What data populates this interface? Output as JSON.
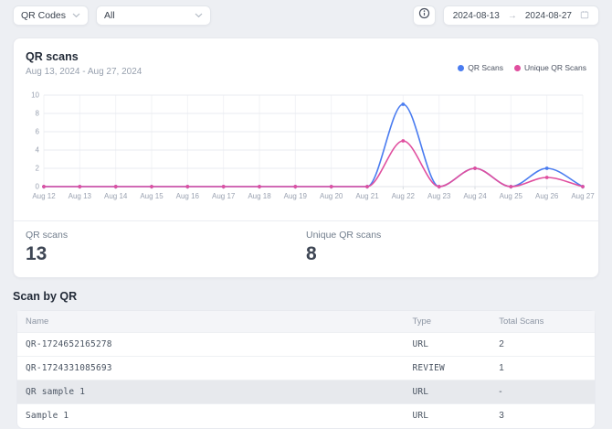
{
  "topbar": {
    "qr_codes_dropdown": "QR Codes",
    "filter_dropdown": "All",
    "date_start": "2024-08-13",
    "date_end": "2024-08-27",
    "range_arrow": "→"
  },
  "scans_card": {
    "title": "QR scans",
    "subtitle": "Aug 13, 2024 - Aug 27, 2024",
    "legend": [
      {
        "label": "QR Scans",
        "color": "#4a7cf0"
      },
      {
        "label": "Unique QR Scans",
        "color": "#e04f9f"
      }
    ],
    "stats": [
      {
        "label": "QR scans",
        "value": "13"
      },
      {
        "label": "Unique QR scans",
        "value": "8"
      }
    ]
  },
  "chart_data": {
    "type": "line",
    "title": "QR scans",
    "x": [
      "Aug 12",
      "Aug 13",
      "Aug 14",
      "Aug 15",
      "Aug 16",
      "Aug 17",
      "Aug 18",
      "Aug 19",
      "Aug 20",
      "Aug 21",
      "Aug 22",
      "Aug 23",
      "Aug 24",
      "Aug 25",
      "Aug 26",
      "Aug 27"
    ],
    "series": [
      {
        "name": "QR Scans",
        "color": "#4a7cf0",
        "values": [
          0,
          0,
          0,
          0,
          0,
          0,
          0,
          0,
          0,
          0,
          9,
          0,
          2,
          0,
          2,
          0
        ]
      },
      {
        "name": "Unique QR Scans",
        "color": "#e04f9f",
        "values": [
          0,
          0,
          0,
          0,
          0,
          0,
          0,
          0,
          0,
          0,
          5,
          0,
          2,
          0,
          1,
          0
        ]
      }
    ],
    "ylim": [
      0,
      10
    ],
    "yticks": [
      0,
      2,
      4,
      6,
      8,
      10
    ],
    "grid": true,
    "curve": "monotone",
    "legend_position": "top-right"
  },
  "table_section": {
    "title": "Scan by QR",
    "columns": [
      "Name",
      "Type",
      "Total Scans"
    ],
    "rows": [
      {
        "name": "QR-1724652165278",
        "type": "URL",
        "total_scans": "2",
        "highlighted": false
      },
      {
        "name": "QR-1724331085693",
        "type": "REVIEW",
        "total_scans": "1",
        "highlighted": false
      },
      {
        "name": "QR sample 1",
        "type": "URL",
        "total_scans": "-",
        "highlighted": true
      },
      {
        "name": "Sample 1",
        "type": "URL",
        "total_scans": "3",
        "highlighted": false
      }
    ]
  },
  "colors": {
    "page_background": "#edeff3",
    "card_background": "#ffffff",
    "qr_scans_series": "#4a7cf0",
    "unique_qr_scans_series": "#e04f9f",
    "row_highlight": "#e7e9ed"
  }
}
